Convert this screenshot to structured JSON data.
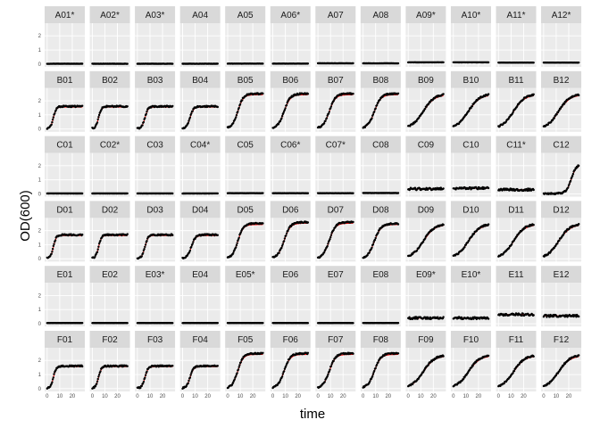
{
  "chart_data": {
    "type": "line",
    "xlabel": "time",
    "ylabel": "OD(600)",
    "xlim": [
      -2,
      30
    ],
    "ylim": [
      -0.2,
      2.9
    ],
    "x_ticks": [
      0,
      10,
      20
    ],
    "y_ticks": [
      0,
      1,
      2
    ],
    "grid": true,
    "colors": {
      "panel_bg": "#ebebeb",
      "strip_bg": "#d9d9d9",
      "points": "#000000",
      "fit": "#ff0000",
      "grid": "#ffffff"
    },
    "rows": [
      "A",
      "B",
      "C",
      "D",
      "E",
      "F"
    ],
    "columns": [
      "01",
      "02",
      "03",
      "04",
      "05",
      "06",
      "07",
      "08",
      "09",
      "10",
      "11",
      "12"
    ],
    "panels": [
      {
        "label": "A01*",
        "final_od": 0.02,
        "rate": 0,
        "lag": 0
      },
      {
        "label": "A02*",
        "final_od": 0.02,
        "rate": 0,
        "lag": 0
      },
      {
        "label": "A03*",
        "final_od": 0.02,
        "rate": 0,
        "lag": 0
      },
      {
        "label": "A04",
        "final_od": 0.02,
        "rate": 0,
        "lag": 0
      },
      {
        "label": "A05",
        "final_od": 0.03,
        "rate": 0,
        "lag": 0
      },
      {
        "label": "A06*",
        "final_od": 0.03,
        "rate": 0,
        "lag": 0
      },
      {
        "label": "A07",
        "final_od": 0.05,
        "rate": 0,
        "lag": 0
      },
      {
        "label": "A08",
        "final_od": 0.05,
        "rate": 0,
        "lag": 0
      },
      {
        "label": "A09*",
        "final_od": 0.12,
        "rate": 0,
        "lag": 0
      },
      {
        "label": "A10*",
        "final_od": 0.12,
        "rate": 0,
        "lag": 0
      },
      {
        "label": "A11*",
        "final_od": 0.1,
        "rate": 0,
        "lag": 0
      },
      {
        "label": "A12*",
        "final_od": 0.1,
        "rate": 0,
        "lag": 0
      },
      {
        "label": "B01",
        "final_od": 1.6,
        "rate": 0.9,
        "lag": 5
      },
      {
        "label": "B02",
        "final_od": 1.6,
        "rate": 0.85,
        "lag": 5
      },
      {
        "label": "B03",
        "final_od": 1.6,
        "rate": 0.8,
        "lag": 6
      },
      {
        "label": "B04",
        "final_od": 1.6,
        "rate": 0.7,
        "lag": 6
      },
      {
        "label": "B05",
        "final_od": 2.5,
        "rate": 0.45,
        "lag": 8
      },
      {
        "label": "B06",
        "final_od": 2.5,
        "rate": 0.4,
        "lag": 9
      },
      {
        "label": "B07",
        "final_od": 2.5,
        "rate": 0.4,
        "lag": 9
      },
      {
        "label": "B08",
        "final_od": 2.5,
        "rate": 0.38,
        "lag": 9
      },
      {
        "label": "B09",
        "final_od": 2.5,
        "rate": 0.22,
        "lag": 12
      },
      {
        "label": "B10",
        "final_od": 2.5,
        "rate": 0.22,
        "lag": 12
      },
      {
        "label": "B11",
        "final_od": 2.5,
        "rate": 0.22,
        "lag": 12
      },
      {
        "label": "B12",
        "final_od": 2.5,
        "rate": 0.22,
        "lag": 12
      },
      {
        "label": "C01",
        "final_od": 0.03,
        "rate": 0,
        "lag": 0
      },
      {
        "label": "C02*",
        "final_od": 0.03,
        "rate": 0,
        "lag": 0
      },
      {
        "label": "C03",
        "final_od": 0.03,
        "rate": 0,
        "lag": 0
      },
      {
        "label": "C04*",
        "final_od": 0.03,
        "rate": 0,
        "lag": 0
      },
      {
        "label": "C05",
        "final_od": 0.05,
        "rate": 0,
        "lag": 0
      },
      {
        "label": "C06*",
        "final_od": 0.05,
        "rate": 0,
        "lag": 0
      },
      {
        "label": "C07*",
        "final_od": 0.05,
        "rate": 0,
        "lag": 0
      },
      {
        "label": "C08",
        "final_od": 0.06,
        "rate": 0,
        "lag": 0
      },
      {
        "label": "C09",
        "final_od": 0.35,
        "rate": 0,
        "lag": 0
      },
      {
        "label": "C10",
        "final_od": 0.4,
        "rate": 0,
        "lag": 0
      },
      {
        "label": "C11*",
        "final_od": 0.3,
        "rate": 0,
        "lag": 0
      },
      {
        "label": "C12",
        "final_od": 2.1,
        "rate": 0.5,
        "lag": 22
      },
      {
        "label": "D01",
        "final_od": 1.7,
        "rate": 0.9,
        "lag": 5
      },
      {
        "label": "D02",
        "final_od": 1.7,
        "rate": 0.85,
        "lag": 5
      },
      {
        "label": "D03",
        "final_od": 1.7,
        "rate": 0.8,
        "lag": 6
      },
      {
        "label": "D04",
        "final_od": 1.7,
        "rate": 0.6,
        "lag": 7
      },
      {
        "label": "D05",
        "final_od": 2.5,
        "rate": 0.45,
        "lag": 8
      },
      {
        "label": "D06",
        "final_od": 2.6,
        "rate": 0.4,
        "lag": 9
      },
      {
        "label": "D07",
        "final_od": 2.6,
        "rate": 0.4,
        "lag": 9
      },
      {
        "label": "D08",
        "final_od": 2.5,
        "rate": 0.38,
        "lag": 9
      },
      {
        "label": "D09",
        "final_od": 2.5,
        "rate": 0.22,
        "lag": 12
      },
      {
        "label": "D10",
        "final_od": 2.5,
        "rate": 0.22,
        "lag": 12
      },
      {
        "label": "D11",
        "final_od": 2.5,
        "rate": 0.22,
        "lag": 12
      },
      {
        "label": "D12",
        "final_od": 2.5,
        "rate": 0.22,
        "lag": 12
      },
      {
        "label": "E01",
        "final_od": 0.05,
        "rate": 0,
        "lag": 0
      },
      {
        "label": "E02",
        "final_od": 0.05,
        "rate": 0,
        "lag": 0
      },
      {
        "label": "E03*",
        "final_od": 0.05,
        "rate": 0,
        "lag": 0
      },
      {
        "label": "E04",
        "final_od": 0.05,
        "rate": 0,
        "lag": 0
      },
      {
        "label": "E05*",
        "final_od": 0.05,
        "rate": 0,
        "lag": 0
      },
      {
        "label": "E06",
        "final_od": 0.05,
        "rate": 0,
        "lag": 0
      },
      {
        "label": "E07",
        "final_od": 0.05,
        "rate": 0,
        "lag": 0
      },
      {
        "label": "E08",
        "final_od": 0.05,
        "rate": 0,
        "lag": 0
      },
      {
        "label": "E09*",
        "final_od": 0.4,
        "rate": 0,
        "lag": 0
      },
      {
        "label": "E10*",
        "final_od": 0.4,
        "rate": 0,
        "lag": 0
      },
      {
        "label": "E11",
        "final_od": 0.65,
        "rate": 0,
        "lag": 0
      },
      {
        "label": "E12",
        "final_od": 0.55,
        "rate": 0,
        "lag": 0
      },
      {
        "label": "F01",
        "final_od": 1.6,
        "rate": 0.9,
        "lag": 5
      },
      {
        "label": "F02",
        "final_od": 1.6,
        "rate": 0.85,
        "lag": 5
      },
      {
        "label": "F03",
        "final_od": 1.6,
        "rate": 0.8,
        "lag": 6
      },
      {
        "label": "F04",
        "final_od": 1.6,
        "rate": 0.7,
        "lag": 6
      },
      {
        "label": "F05",
        "final_od": 2.5,
        "rate": 0.45,
        "lag": 8
      },
      {
        "label": "F06",
        "final_od": 2.5,
        "rate": 0.4,
        "lag": 9
      },
      {
        "label": "F07",
        "final_od": 2.5,
        "rate": 0.4,
        "lag": 9
      },
      {
        "label": "F08",
        "final_od": 2.5,
        "rate": 0.38,
        "lag": 9
      },
      {
        "label": "F09",
        "final_od": 2.4,
        "rate": 0.22,
        "lag": 12
      },
      {
        "label": "F10",
        "final_od": 2.4,
        "rate": 0.22,
        "lag": 12
      },
      {
        "label": "F11",
        "final_od": 2.4,
        "rate": 0.22,
        "lag": 12
      },
      {
        "label": "F12",
        "final_od": 2.4,
        "rate": 0.22,
        "lag": 12
      }
    ]
  }
}
